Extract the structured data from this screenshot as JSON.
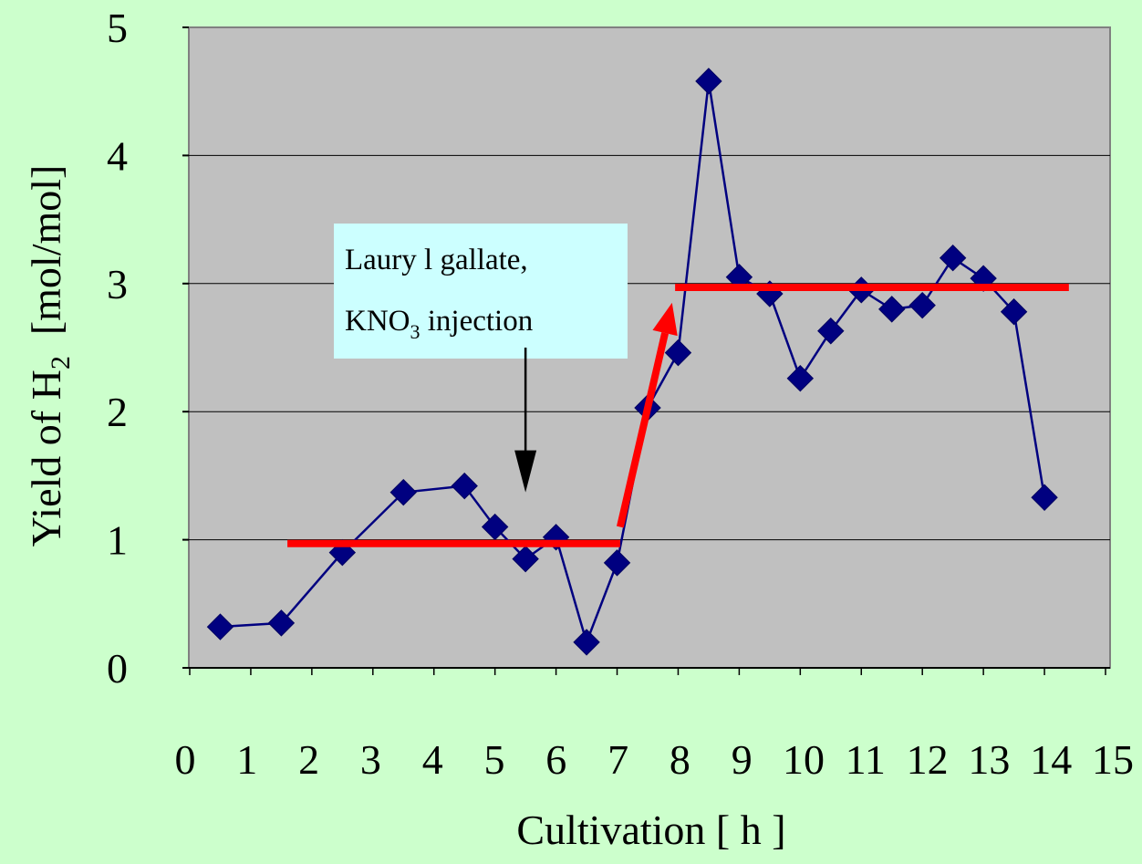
{
  "chart_data": {
    "type": "line",
    "xlabel": "Cultivation [ h ]",
    "ylabel_parts": [
      "Yield of H",
      "2",
      "  [mol/mol]"
    ],
    "xlim": [
      0,
      15
    ],
    "ylim": [
      0,
      5
    ],
    "x_ticks": [
      0,
      1,
      2,
      3,
      4,
      5,
      6,
      7,
      8,
      9,
      10,
      11,
      12,
      13,
      14,
      15
    ],
    "x_tick_labels": [
      "0",
      "1",
      "2",
      "3",
      "4",
      "5",
      "6",
      "7",
      "8",
      "9",
      "10",
      "11",
      "12",
      "13",
      "14",
      "15"
    ],
    "y_ticks": [
      0,
      1,
      2,
      3,
      4,
      5
    ],
    "y_tick_labels": [
      "0",
      "1",
      "2",
      "3",
      "4",
      "5"
    ],
    "grid": "horizontal",
    "series": [
      {
        "color": "#000080",
        "marker": "diamond",
        "points": [
          [
            0.5,
            0.32
          ],
          [
            1.5,
            0.35
          ],
          [
            2.5,
            0.9
          ],
          [
            3.5,
            1.37
          ],
          [
            4.5,
            1.42
          ],
          [
            5.0,
            1.1
          ],
          [
            5.5,
            0.85
          ],
          [
            6.0,
            1.02
          ],
          [
            6.5,
            0.2
          ],
          [
            7.0,
            0.82
          ],
          [
            7.5,
            2.03
          ],
          [
            8.0,
            2.46
          ],
          [
            8.5,
            4.58
          ],
          [
            9.0,
            3.05
          ],
          [
            9.5,
            2.92
          ],
          [
            10.0,
            2.26
          ],
          [
            10.5,
            2.63
          ],
          [
            11.0,
            2.95
          ],
          [
            11.5,
            2.8
          ],
          [
            12.0,
            2.83
          ],
          [
            12.5,
            3.2
          ],
          [
            13.0,
            3.04
          ],
          [
            13.5,
            2.78
          ],
          [
            14.0,
            1.33
          ]
        ]
      }
    ],
    "annotations": {
      "note_line1": "Laury l gallate,",
      "note_line2_parts": [
        "KNO",
        "3",
        " injection"
      ],
      "note_box_color": "#ccffff",
      "highlight_color": "#ff0000",
      "levels": [
        {
          "x0": 1.6,
          "x1": 7.05,
          "y": 0.97
        },
        {
          "x0": 7.95,
          "x1": 14.4,
          "y": 2.97
        }
      ],
      "jump_arrow": {
        "x0": 7.05,
        "y0": 1.1,
        "x1": 7.9,
        "y1": 2.85
      },
      "injection_arrow": {
        "x": 5.5,
        "y_from": 2.5,
        "y_to": 1.37
      }
    }
  }
}
